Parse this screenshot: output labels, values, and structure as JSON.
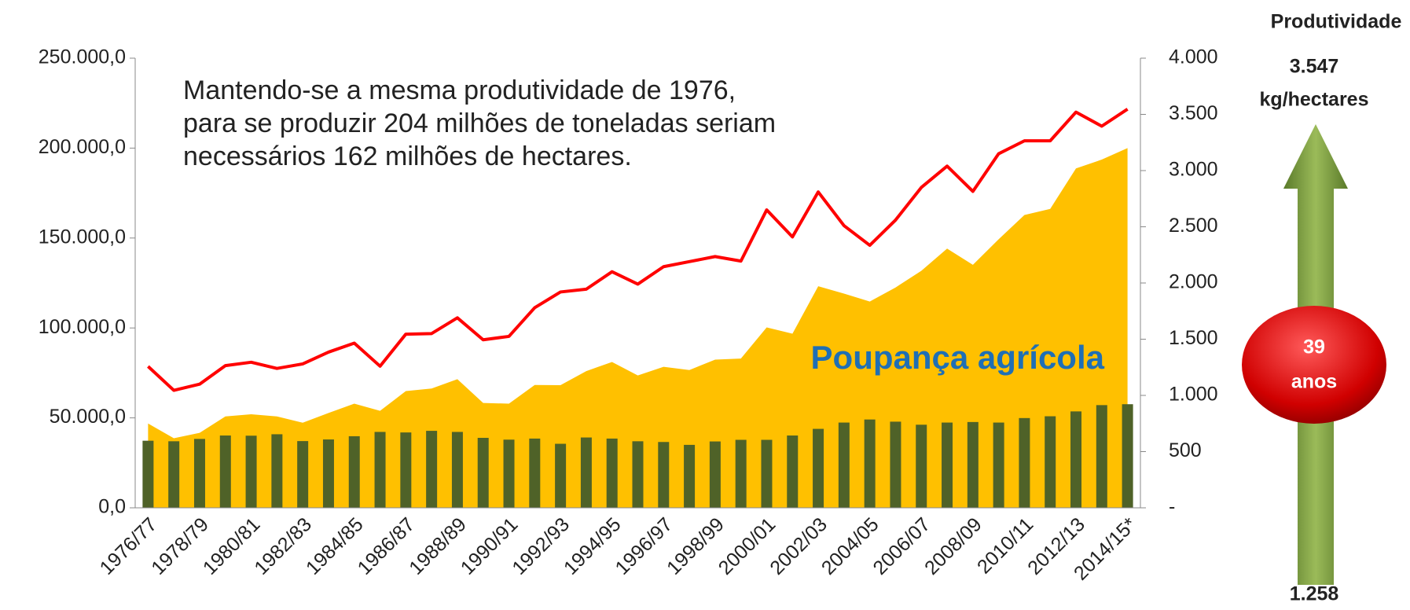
{
  "chart_data": {
    "type": "combo",
    "categories": [
      "1976/77",
      null,
      "1978/79",
      null,
      "1980/81",
      null,
      "1982/83",
      null,
      "1984/85",
      null,
      "1986/87",
      null,
      "1988/89",
      null,
      "1990/91",
      null,
      "1992/93",
      null,
      "1994/95",
      null,
      "1996/97",
      null,
      "1998/99",
      null,
      "2000/01",
      null,
      "2002/03",
      null,
      "2004/05",
      null,
      "2006/07",
      null,
      "2008/09",
      null,
      "2010/11",
      null,
      "2012/13",
      null,
      "2014/15*"
    ],
    "series": [
      {
        "type": "area",
        "color": "#ffc000",
        "values": [
          46900,
          38700,
          41700,
          50800,
          52000,
          50800,
          47300,
          52700,
          57900,
          53900,
          64900,
          66300,
          71500,
          58300,
          57900,
          68300,
          68200,
          76000,
          81100,
          73600,
          78400,
          76600,
          82400,
          83000,
          100300,
          96800,
          123200,
          119100,
          114700,
          122500,
          131800,
          144100,
          135100,
          149300,
          162800,
          166200,
          188700,
          193600,
          200000
        ]
      },
      {
        "type": "bar",
        "color": "#4f6228",
        "values": [
          37300,
          37000,
          38300,
          40200,
          40100,
          40900,
          37100,
          38000,
          39800,
          42200,
          41900,
          42800,
          42200,
          38900,
          37900,
          38500,
          35600,
          39100,
          38500,
          37000,
          36600,
          35000,
          36900,
          37800,
          37800,
          40200,
          43900,
          47400,
          49100,
          47900,
          46200,
          47400,
          47700,
          47400,
          49900,
          50900,
          53600,
          57100,
          57600
        ]
      },
      {
        "type": "line",
        "color": "#ff0000",
        "axis": "y2",
        "values": [
          1258,
          1045,
          1100,
          1265,
          1295,
          1240,
          1280,
          1385,
          1465,
          1260,
          1545,
          1550,
          1690,
          1495,
          1525,
          1780,
          1920,
          1945,
          2100,
          1990,
          2145,
          2190,
          2235,
          2195,
          2650,
          2410,
          2810,
          2510,
          2335,
          2560,
          2850,
          3040,
          2815,
          3150,
          3265,
          3265,
          3520,
          3395,
          3547
        ]
      }
    ],
    "ylim": [
      0,
      250000
    ],
    "yticks": [
      {
        "value": 0,
        "label": "0,0"
      },
      {
        "value": 50000,
        "label": "50.000,0"
      },
      {
        "value": 100000,
        "label": "100.000,0"
      },
      {
        "value": 150000,
        "label": "150.000,0"
      },
      {
        "value": 200000,
        "label": "200.000,0"
      },
      {
        "value": 250000,
        "label": "250.000,0"
      }
    ],
    "y2lim": [
      0,
      4000
    ],
    "y2ticks": [
      {
        "value": 0,
        "label": "-"
      },
      500,
      {
        "value": 1000,
        "label": "1.000"
      },
      {
        "value": 1500,
        "label": "1.500"
      },
      {
        "value": 2000,
        "label": "2.000"
      },
      {
        "value": 2500,
        "label": "2.500"
      },
      {
        "value": 3000,
        "label": "3.000"
      },
      {
        "value": 3500,
        "label": "3.500"
      },
      {
        "value": 4000,
        "label": "4.000"
      }
    ],
    "annotation": [
      "Mantendo-se a mesma produtividade de 1976,",
      "para se produzir 204 milhões de toneladas  seriam",
      "necessários  162 milhões de hectares."
    ],
    "area_label": "Poupança agrícola"
  },
  "side_panel": {
    "title": "Produtividade",
    "top_value": "3.547",
    "top_unit": "kg/hectares",
    "badge": [
      "39",
      "anos"
    ],
    "bottom_value": "1.258"
  }
}
